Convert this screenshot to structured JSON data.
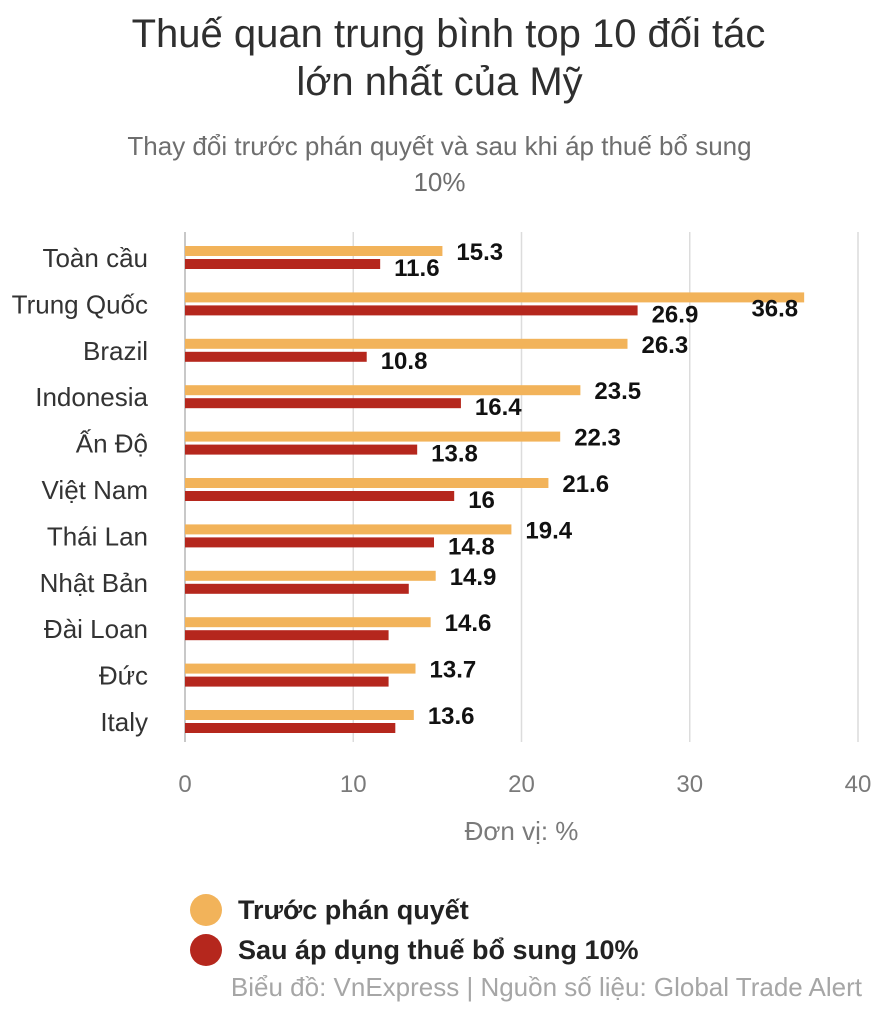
{
  "title_line1": "Thuế quan trung bình top 10 đối tác",
  "title_line2": "lớn nhất của Mỹ",
  "subtitle_line1": "Thay đổi trước phán quyết và sau khi áp thuế bổ sung",
  "subtitle_line2": "10%",
  "source": "Biểu đồ: VnExpress | Nguồn số liệu: Global Trade Alert",
  "colors": {
    "before": "#F2B35A",
    "after": "#B5271D"
  },
  "chart_data": {
    "type": "bar",
    "orientation": "horizontal",
    "categories": [
      "Toàn cầu",
      "Trung Quốc",
      "Brazil",
      "Indonesia",
      "Ấn Độ",
      "Việt Nam",
      "Thái Lan",
      "Nhật Bản",
      "Đài Loan",
      "Đức",
      "Italy"
    ],
    "series": [
      {
        "name": "Trước phán quyết",
        "values": [
          15.3,
          36.8,
          26.3,
          23.5,
          22.3,
          21.6,
          19.4,
          14.9,
          14.6,
          13.7,
          13.6
        ],
        "labels": [
          "15.3",
          "36.8",
          "26.3",
          "23.5",
          "22.3",
          "21.6",
          "19.4",
          "14.9",
          "14.6",
          "13.7",
          "13.6"
        ]
      },
      {
        "name": "Sau áp dụng thuế bổ sung 10%",
        "values": [
          11.6,
          26.9,
          10.8,
          16.4,
          13.8,
          16,
          14.8,
          13.3,
          12.1,
          12.1,
          12.5
        ],
        "labels": [
          "11.6",
          "26.9",
          "10.8",
          "16.4",
          "13.8",
          "16",
          "14.8",
          "",
          "",
          "",
          ""
        ]
      }
    ],
    "xlim": [
      0,
      40
    ],
    "xticks": [
      "0",
      "10",
      "20",
      "30",
      "40"
    ],
    "xlabel": "Đơn vị: %",
    "grid": "vertical",
    "legend": "bottom-left"
  }
}
